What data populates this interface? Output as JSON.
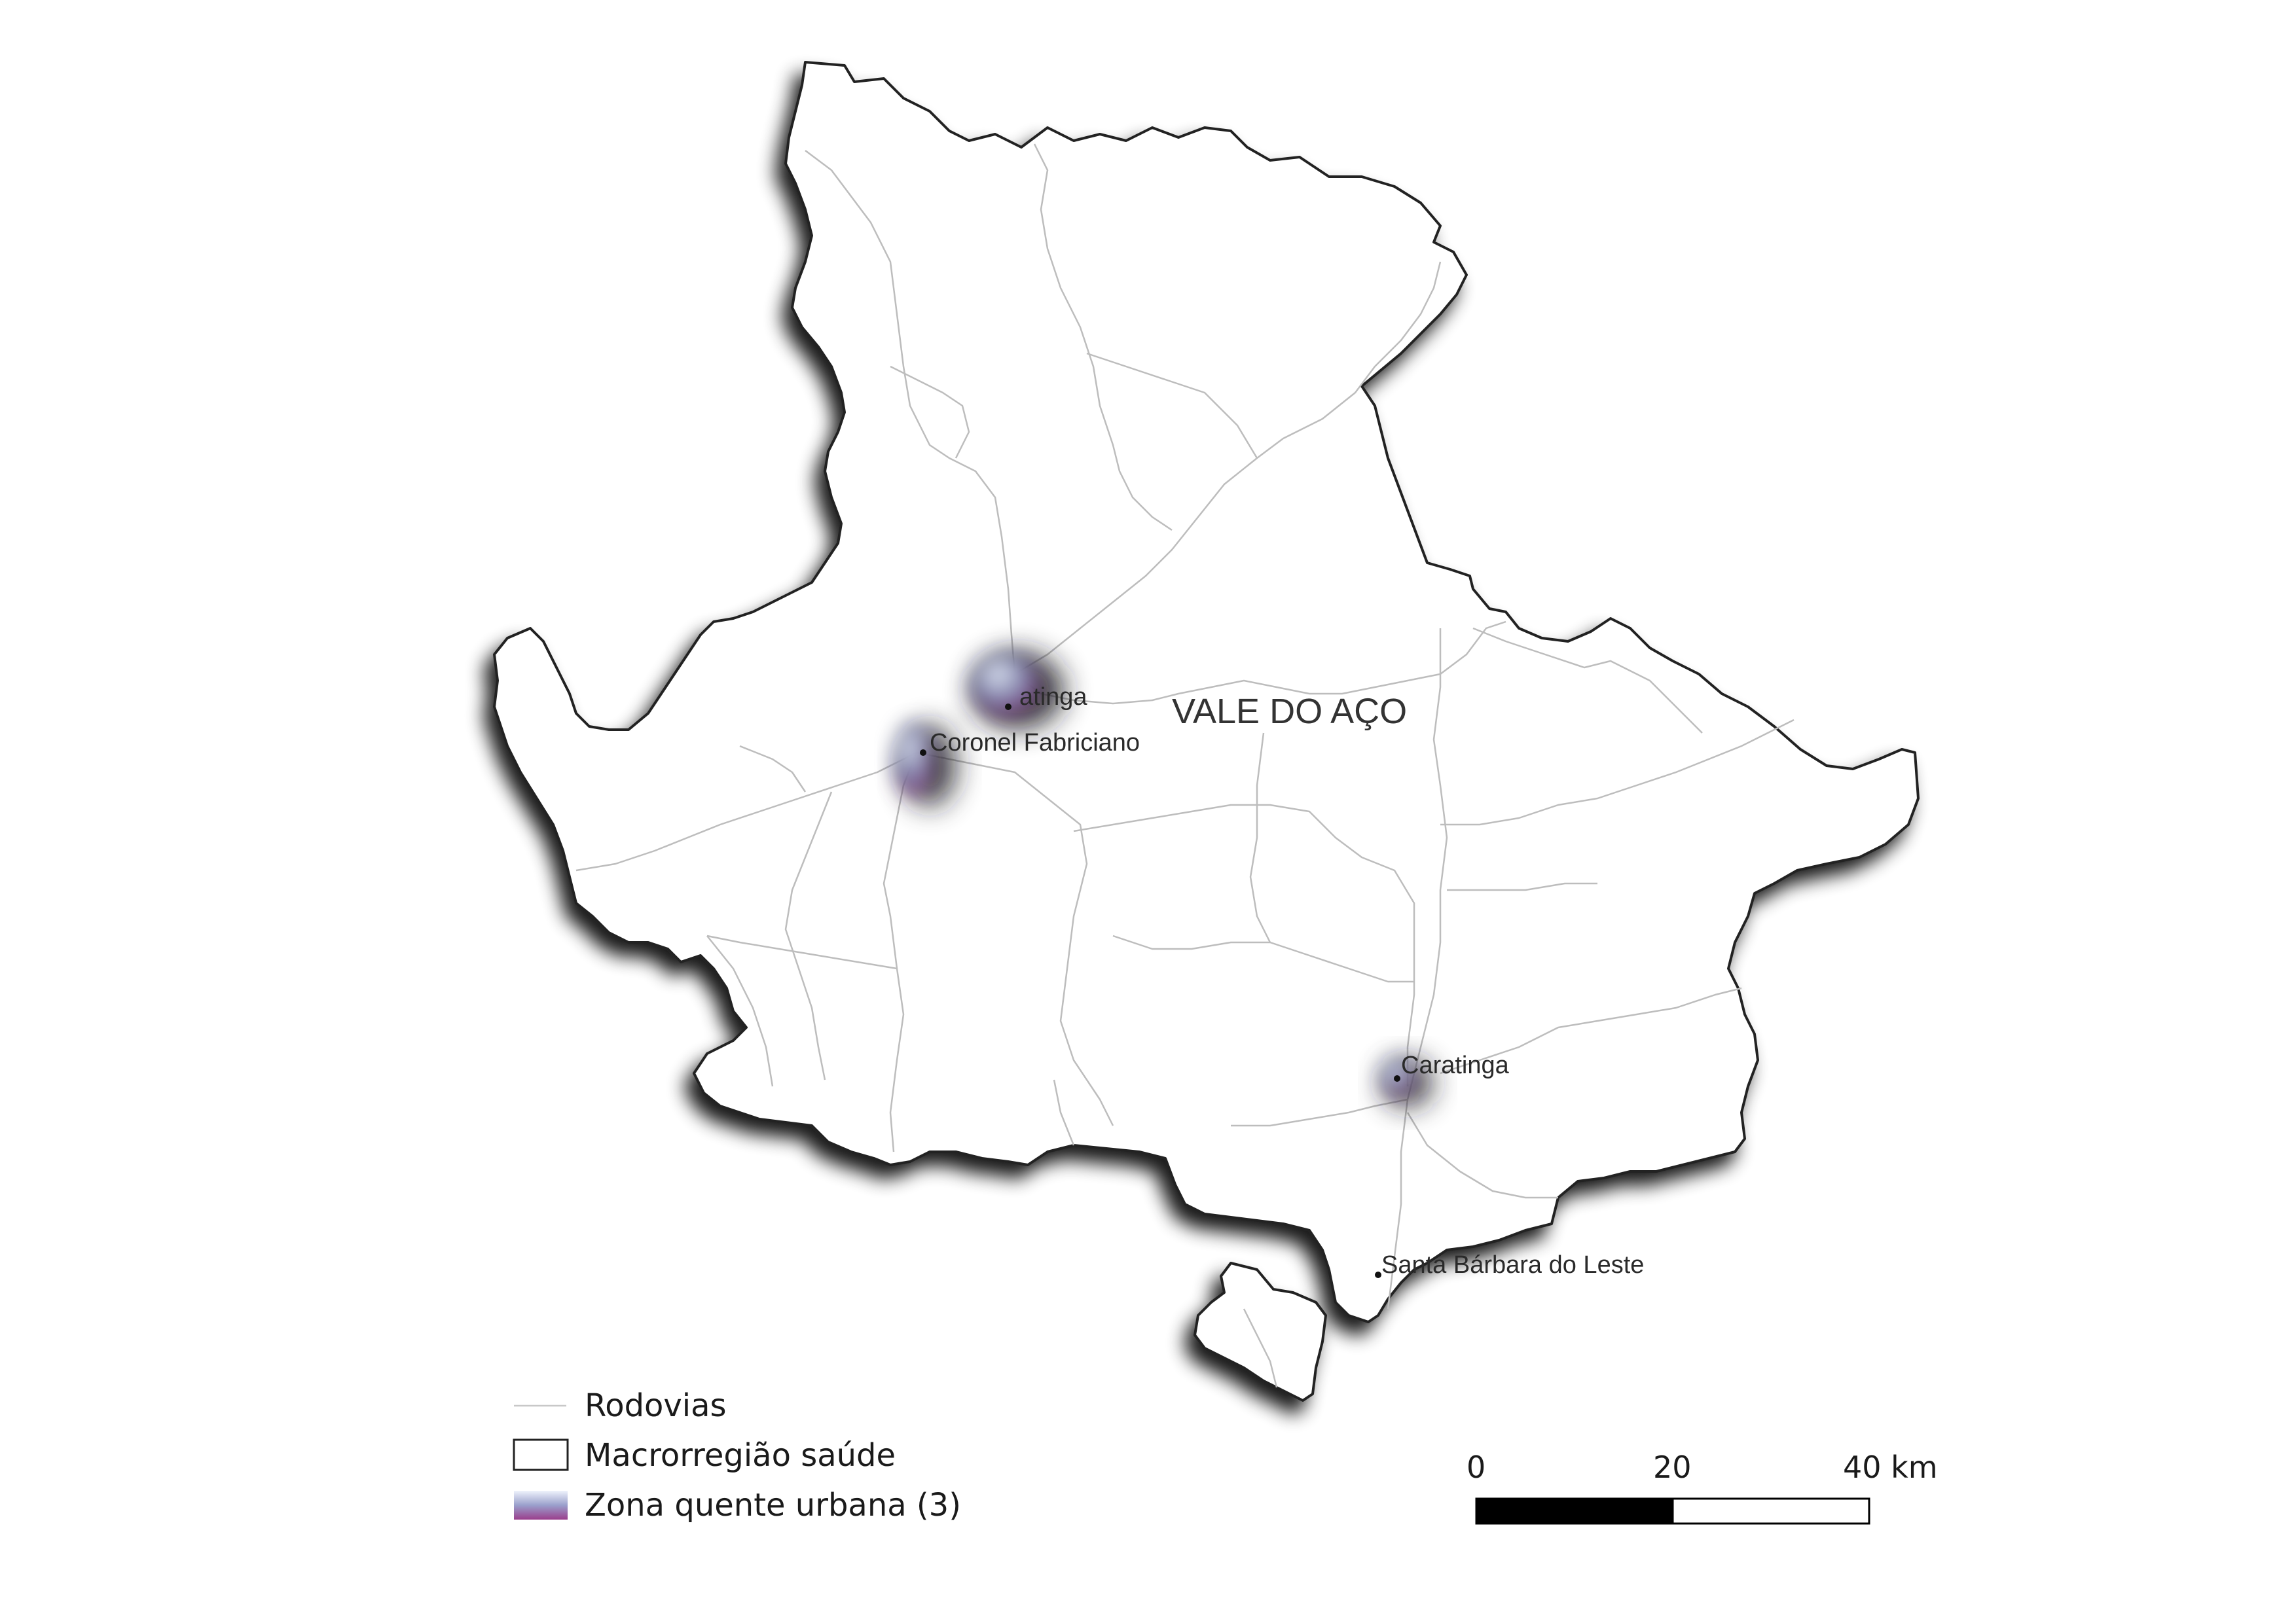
{
  "map": {
    "region_label": "VALE DO AÇO",
    "places": [
      {
        "id": "ipatinga",
        "label": "atinga"
      },
      {
        "id": "coronel-fabriciano",
        "label": "Coronel Fabriciano"
      },
      {
        "id": "caratinga",
        "label": "Caratinga"
      },
      {
        "id": "santa-barbara-do-leste",
        "label": "Santa Bárbara do Leste"
      }
    ]
  },
  "legend": {
    "roads": "Rodovias",
    "macro_region": "Macrorregião saúde",
    "hot_zone": "Zona quente urbana (3)"
  },
  "scale_bar": {
    "tick_0": "0",
    "tick_20": "20",
    "tick_40": "40 km"
  },
  "colors": {
    "hot_zone_top": "#dfe8f6",
    "hot_zone_bottom": "#9a3e8c",
    "hot_zone_shadow": "#1c1c22",
    "roads": "#bdbdbd",
    "border": "#222222"
  }
}
